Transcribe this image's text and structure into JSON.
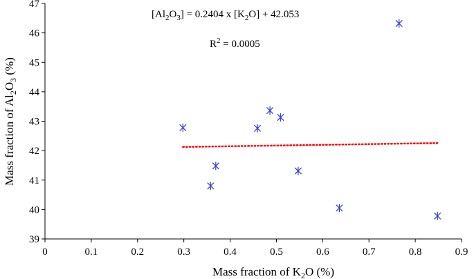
{
  "chart_data": {
    "type": "scatter",
    "title": "",
    "xlabel_parts": [
      "Mass fraction of K",
      "2",
      "O (%)"
    ],
    "ylabel_parts": [
      "Mass fraction of Al",
      "2",
      "O",
      "3",
      " (%)"
    ],
    "xlim": [
      0,
      0.9
    ],
    "ylim": [
      39,
      47
    ],
    "xticks": [
      0,
      0.1,
      0.2,
      0.3,
      0.4,
      0.5,
      0.6,
      0.7,
      0.8,
      0.9
    ],
    "xtick_labels": [
      "0",
      "0.1",
      "0.2",
      "0.3",
      "0.4",
      "0.5",
      "0.6",
      "0.7",
      "0.8",
      "0.9"
    ],
    "yticks": [
      39,
      40,
      41,
      42,
      43,
      44,
      45,
      46,
      47
    ],
    "ytick_labels": [
      "39",
      "40",
      "41",
      "42",
      "43",
      "44",
      "45",
      "46",
      "47"
    ],
    "grid": false,
    "series": [
      {
        "name": "samples",
        "marker": "asterisk",
        "color": "#3b3fd8",
        "x": [
          0.298,
          0.358,
          0.369,
          0.459,
          0.486,
          0.509,
          0.547,
          0.636,
          0.765,
          0.848
        ],
        "y": [
          42.78,
          40.8,
          41.48,
          42.76,
          43.36,
          43.13,
          41.31,
          40.05,
          46.32,
          39.78
        ]
      }
    ],
    "trendline": {
      "type": "linear",
      "style": "dotted",
      "color": "#ff0000",
      "slope": 0.2404,
      "intercept": 42.053,
      "x_range": [
        0.298,
        0.848
      ]
    },
    "annotations": {
      "equation": {
        "lhs_open": "[Al",
        "lhs_sub1": "2",
        "lhs_mid": "O",
        "lhs_sub2": "3",
        "lhs_close": "] = 0.2404 x [K",
        "rhs_sub": "2",
        "rhs_close": "O] + 42.053"
      },
      "r2": {
        "label": "R",
        "sup": "2",
        "value": " = 0.0005"
      }
    }
  }
}
